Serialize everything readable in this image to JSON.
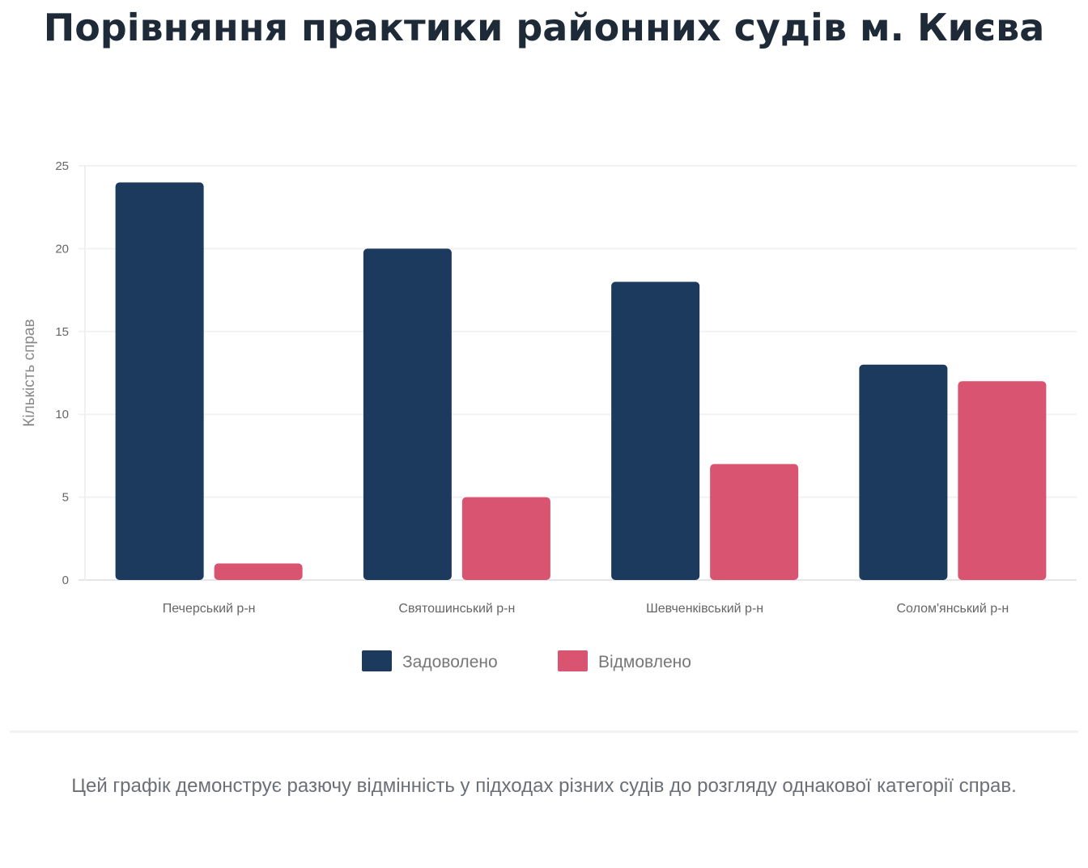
{
  "title": "Порівняння практики районних судів м. Києва",
  "caption": "Цей графік демонструє разючу відмінність у підходах різних судів до розгляду однакової категорії справ.",
  "chart_data": {
    "type": "bar",
    "categories": [
      "Печерський р-н",
      "Святошинський р-н",
      "Шевченківський р-н",
      "Солом'янський р-н"
    ],
    "series": [
      {
        "name": "Задоволено",
        "values": [
          24,
          20,
          18,
          13
        ],
        "color": "#1c3a5e"
      },
      {
        "name": "Відмовлено",
        "values": [
          1,
          5,
          7,
          12
        ],
        "color": "#d95470"
      }
    ],
    "title": "Порівняння практики районних судів м. Києва",
    "xlabel": "",
    "ylabel": "Кількість справ",
    "ylim": [
      0,
      25
    ],
    "yticks": [
      0,
      5,
      10,
      15,
      20,
      25
    ],
    "grid": true,
    "legend": "bottom"
  }
}
